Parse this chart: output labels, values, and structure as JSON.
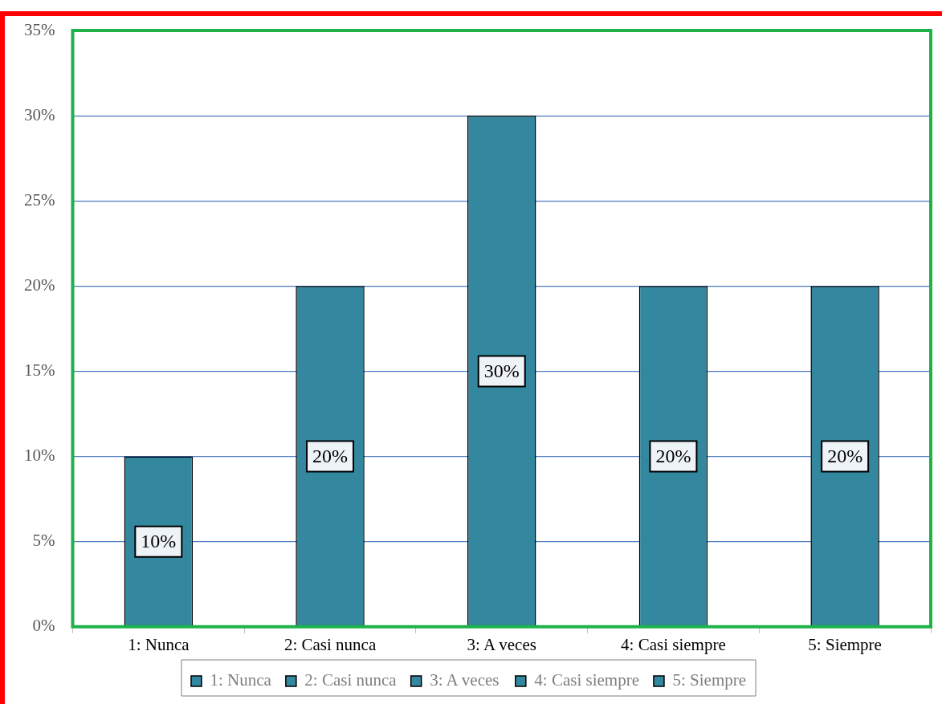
{
  "chart_data": {
    "type": "bar",
    "categories": [
      "1: Nunca",
      "2: Casi nunca",
      "3: A veces",
      "4: Casi siempre",
      "5: Siempre"
    ],
    "series": [
      {
        "name": "1: Nunca",
        "color": "#33879e",
        "values": [
          10,
          null,
          null,
          null,
          null
        ],
        "value_labels": [
          "10%",
          null,
          null,
          null,
          null
        ]
      },
      {
        "name": "2: Casi nunca",
        "color": "#33879e",
        "values": [
          null,
          20,
          null,
          null,
          null
        ],
        "value_labels": [
          null,
          "20%",
          null,
          null,
          null
        ]
      },
      {
        "name": "3: A veces",
        "color": "#33879e",
        "values": [
          null,
          null,
          30,
          null,
          null
        ],
        "value_labels": [
          null,
          null,
          "30%",
          null,
          null
        ]
      },
      {
        "name": "4: Casi siempre",
        "color": "#33879e",
        "values": [
          null,
          null,
          null,
          20,
          null
        ],
        "value_labels": [
          null,
          null,
          null,
          "20%",
          null
        ]
      },
      {
        "name": "5: Siempre",
        "color": "#33879e",
        "values": [
          null,
          null,
          null,
          null,
          20
        ],
        "value_labels": [
          null,
          null,
          null,
          null,
          "20%"
        ]
      }
    ],
    "ylim": [
      0,
      35
    ],
    "yticks": [
      {
        "value": 0,
        "label": "0%"
      },
      {
        "value": 5,
        "label": "5%"
      },
      {
        "value": 10,
        "label": "10%"
      },
      {
        "value": 15,
        "label": "15%"
      },
      {
        "value": 20,
        "label": "20%"
      },
      {
        "value": 25,
        "label": "25%"
      },
      {
        "value": 30,
        "label": "30%"
      },
      {
        "value": 35,
        "label": "35%"
      }
    ],
    "grid": "y",
    "legend": "bottom"
  }
}
